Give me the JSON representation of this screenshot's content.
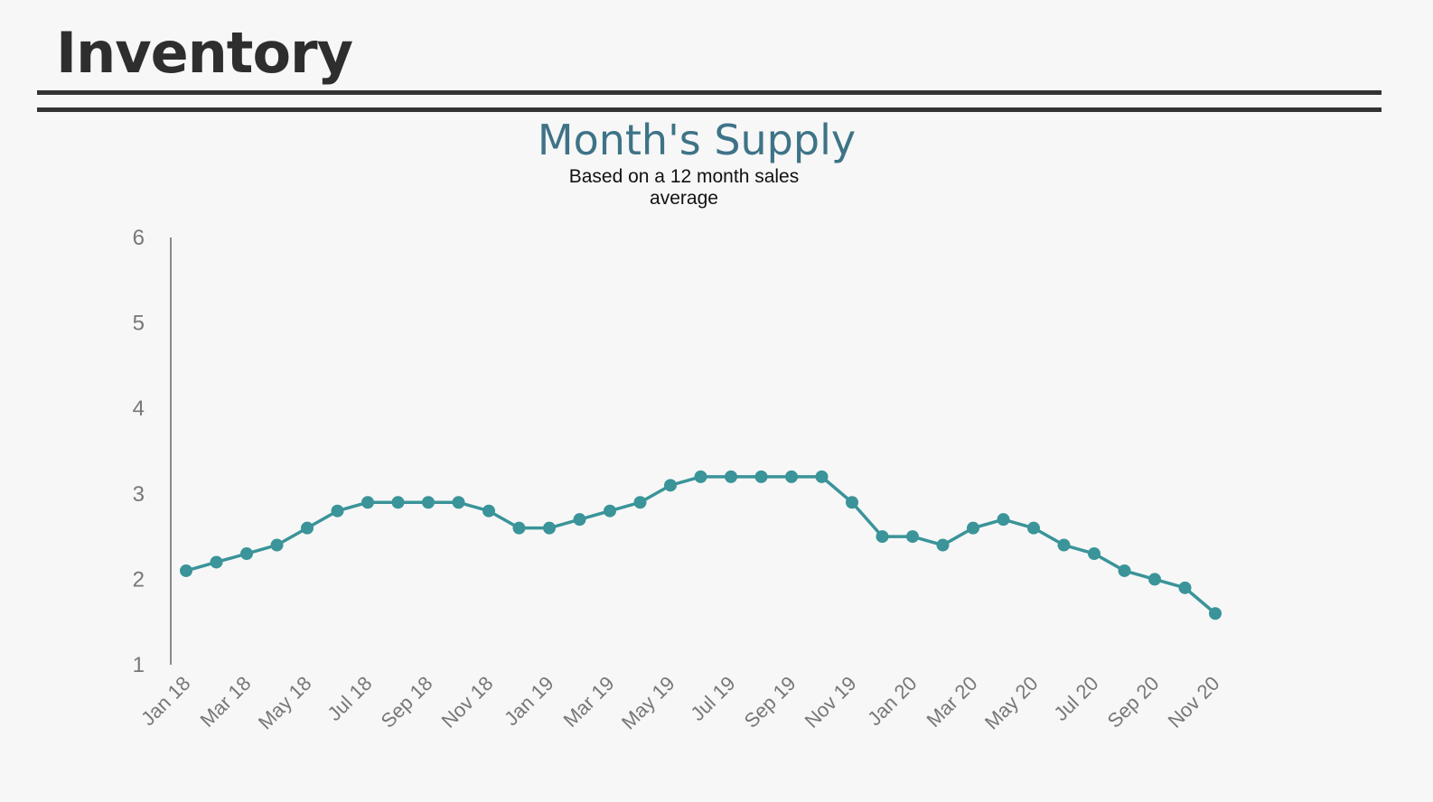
{
  "header": {
    "title": "Inventory"
  },
  "chart_data": {
    "type": "line",
    "title": "Month's Supply",
    "subtitle": "Based on a 12 month sales average",
    "xlabel": "",
    "ylabel": "",
    "ylim": [
      1,
      6
    ],
    "yticks": [
      1,
      2,
      3,
      4,
      5,
      6
    ],
    "color": "#3a9499",
    "x": [
      "Jan 18",
      "Feb 18",
      "Mar 18",
      "Apr 18",
      "May 18",
      "Jun 18",
      "Jul 18",
      "Aug 18",
      "Sep 18",
      "Oct 18",
      "Nov 18",
      "Dec 18",
      "Jan 19",
      "Feb 19",
      "Mar 19",
      "Apr 19",
      "May 19",
      "Jun 19",
      "Jul 19",
      "Aug 19",
      "Sep 19",
      "Oct 19",
      "Nov 19",
      "Dec 19",
      "Jan 20",
      "Feb 20",
      "Mar 20",
      "Apr 20",
      "May 20",
      "Jun 20",
      "Jul 20",
      "Aug 20",
      "Sep 20",
      "Oct 20",
      "Nov 20"
    ],
    "xtick_labels": [
      "Jan 18",
      "Mar 18",
      "May 18",
      "Jul 18",
      "Sep 18",
      "Nov 18",
      "Jan 19",
      "Mar 19",
      "May 19",
      "Jul 19",
      "Sep 19",
      "Nov 19",
      "Jan 20",
      "Mar 20",
      "May 20",
      "Jul 20",
      "Sep 20",
      "Nov 20"
    ],
    "values": [
      2.1,
      2.2,
      2.3,
      2.4,
      2.6,
      2.8,
      2.9,
      2.9,
      2.9,
      2.9,
      2.8,
      2.6,
      2.6,
      2.7,
      2.8,
      2.9,
      3.1,
      3.2,
      3.2,
      3.2,
      3.2,
      3.2,
      2.9,
      2.5,
      2.5,
      2.4,
      2.6,
      2.7,
      2.6,
      2.4,
      2.3,
      2.1,
      2.0,
      1.9,
      1.6
    ]
  }
}
